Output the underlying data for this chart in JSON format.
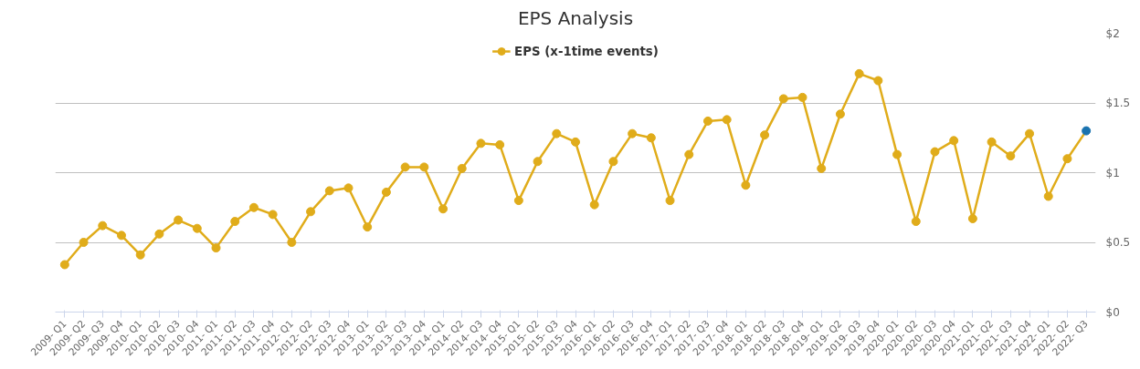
{
  "chart_data": {
    "type": "line",
    "title": "EPS Analysis",
    "categories": [
      "2009- Q1",
      "2009- Q2",
      "2009- Q3",
      "2009- Q4",
      "2010- Q1",
      "2010- Q2",
      "2010- Q3",
      "2010- Q4",
      "2011- Q1",
      "2011- Q2",
      "2011- Q3",
      "2011- Q4",
      "2012- Q1",
      "2012- Q2",
      "2012- Q3",
      "2012- Q4",
      "2013- Q1",
      "2013- Q2",
      "2013- Q3",
      "2013- Q4",
      "2014- Q1",
      "2014- Q2",
      "2014- Q3",
      "2014- Q4",
      "2015- Q1",
      "2015- Q2",
      "2015- Q3",
      "2015- Q4",
      "2016- Q1",
      "2016- Q2",
      "2016- Q3",
      "2016- Q4",
      "2017- Q1",
      "2017- Q2",
      "2017- Q3",
      "2017- Q4",
      "2018- Q1",
      "2018- Q2",
      "2018- Q3",
      "2018- Q4",
      "2019- Q1",
      "2019- Q2",
      "2019- Q3",
      "2019- Q4",
      "2020- Q1",
      "2020- Q2",
      "2020- Q3",
      "2020- Q4",
      "2021- Q1",
      "2021- Q2",
      "2021- Q3",
      "2021- Q4",
      "2022- Q1",
      "2022- Q2",
      "2022- Q3"
    ],
    "series": [
      {
        "name": "EPS (x-1time events)",
        "color": "#e0ac1a",
        "colors": [
          "#e0ac1a",
          "#e0ac1a",
          "#e0ac1a",
          "#e0ac1a",
          "#e0ac1a",
          "#e0ac1a",
          "#e0ac1a",
          "#e0ac1a",
          "#e0ac1a",
          "#e0ac1a",
          "#e0ac1a",
          "#e0ac1a",
          "#e0ac1a",
          "#e0ac1a",
          "#e0ac1a",
          "#e0ac1a",
          "#e0ac1a",
          "#e0ac1a",
          "#e0ac1a",
          "#e0ac1a",
          "#e0ac1a",
          "#e0ac1a",
          "#e0ac1a",
          "#e0ac1a",
          "#e0ac1a",
          "#e0ac1a",
          "#e0ac1a",
          "#e0ac1a",
          "#e0ac1a",
          "#e0ac1a",
          "#e0ac1a",
          "#e0ac1a",
          "#e0ac1a",
          "#e0ac1a",
          "#e0ac1a",
          "#e0ac1a",
          "#e0ac1a",
          "#e0ac1a",
          "#e0ac1a",
          "#e0ac1a",
          "#e0ac1a",
          "#e0ac1a",
          "#e0ac1a",
          "#e0ac1a",
          "#e0ac1a",
          "#e0ac1a",
          "#e0ac1a",
          "#e0ac1a",
          "#e0ac1a",
          "#e0ac1a",
          "#e0ac1a",
          "#e0ac1a",
          "#e0ac1a",
          "#e0ac1a",
          "#1a73b0"
        ],
        "values": [
          0.34,
          0.5,
          0.62,
          0.55,
          0.41,
          0.56,
          0.66,
          0.6,
          0.46,
          0.65,
          0.75,
          0.7,
          0.5,
          0.72,
          0.87,
          0.89,
          0.61,
          0.86,
          1.04,
          1.04,
          0.74,
          1.03,
          1.21,
          1.2,
          0.8,
          1.08,
          1.28,
          1.22,
          0.77,
          1.08,
          1.28,
          1.25,
          0.8,
          1.13,
          1.37,
          1.38,
          0.91,
          1.27,
          1.53,
          1.54,
          1.03,
          1.42,
          1.71,
          1.66,
          1.13,
          0.65,
          1.15,
          1.23,
          0.67,
          1.22,
          1.12,
          1.28,
          0.83,
          1.1,
          1.3
        ]
      }
    ],
    "ylim": [
      0,
      2
    ],
    "yticks": [
      {
        "value": 0,
        "label": "$0"
      },
      {
        "value": 0.5,
        "label": "$0.5"
      },
      {
        "value": 1,
        "label": "$1"
      },
      {
        "value": 1.5,
        "label": "$1.5"
      },
      {
        "value": 2,
        "label": "$2"
      }
    ],
    "grid": "y",
    "legend": "top",
    "marker": "circle",
    "line_style": "solid"
  }
}
